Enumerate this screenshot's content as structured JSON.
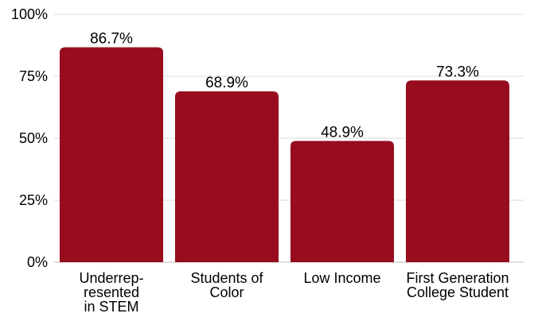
{
  "chart_data": {
    "type": "bar",
    "categories": [
      [
        "Underrep-",
        "resented",
        "in STEM"
      ],
      [
        "Students of",
        "Color"
      ],
      [
        "Low Income"
      ],
      [
        "First Generation",
        "College Student"
      ]
    ],
    "values": [
      86.7,
      68.9,
      48.9,
      73.3
    ],
    "data_labels": [
      "86.7%",
      "68.9%",
      "48.9%",
      "73.3%"
    ],
    "title": "",
    "xlabel": "",
    "ylabel": "",
    "ylim": [
      0,
      100
    ],
    "yticks": [
      0,
      25,
      50,
      75,
      100
    ],
    "ytick_labels": [
      "0%",
      "25%",
      "50%",
      "75%",
      "100%"
    ],
    "grid": true,
    "bar_color": "#970d1d"
  }
}
